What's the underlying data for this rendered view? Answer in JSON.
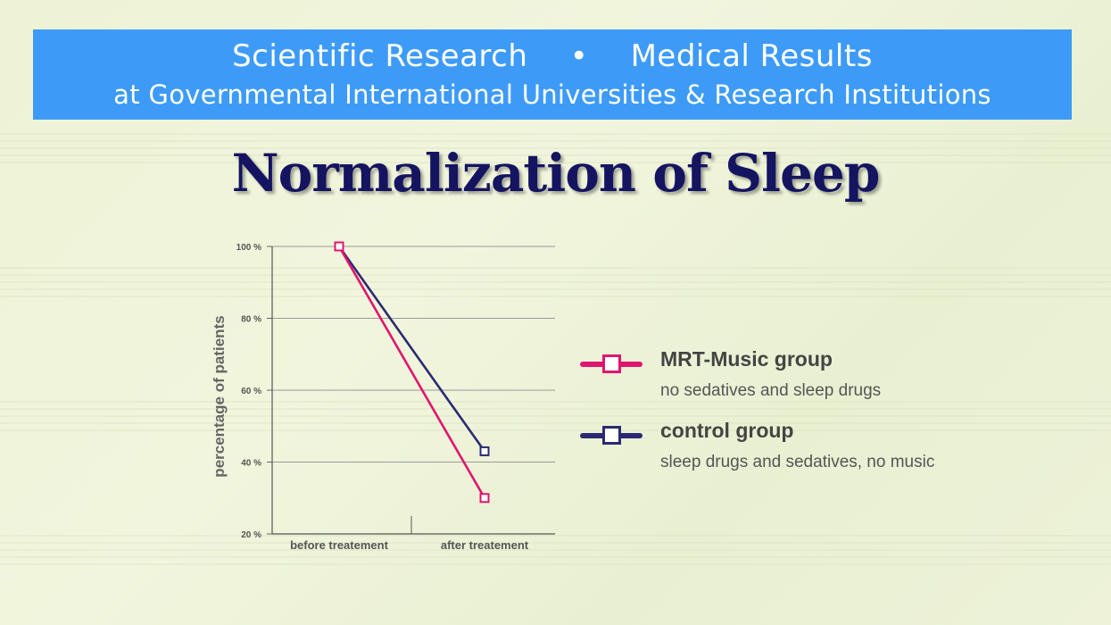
{
  "banner": {
    "line1_left": "Scientific Research",
    "line1_sep": "•",
    "line1_right": "Medical Results",
    "line2": "at Governmental International Universities & Research Institutions"
  },
  "page_title": "Normalization of Sleep",
  "colors": {
    "banner_bg": "#3d9bf7",
    "title": "#141460",
    "mrt": "#e0156f",
    "control": "#2b2a72"
  },
  "chart_data": {
    "type": "line",
    "categories": [
      "before treatement",
      "after treatement"
    ],
    "ylabel": "percentage of patients",
    "xlabel": "",
    "ylim": [
      20,
      100
    ],
    "yticks": [
      100,
      80,
      60,
      40,
      20
    ],
    "ytick_labels": [
      "100 %",
      "80 %",
      "60 %",
      "40 %",
      "20 %"
    ],
    "grid": true,
    "legend_position": "right",
    "series": [
      {
        "name": "MRT-Music group",
        "description": "no sedatives and sleep drugs",
        "color": "#e0156f",
        "values": [
          100,
          30
        ]
      },
      {
        "name": "control group",
        "description": "sleep drugs and sedatives, no music",
        "color": "#2b2a72",
        "values": [
          100,
          43
        ]
      }
    ]
  }
}
